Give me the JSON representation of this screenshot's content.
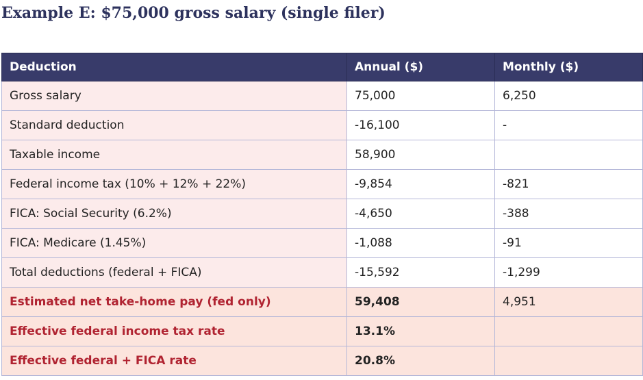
{
  "title": "Example E: $75,000 gross salary (single filer)",
  "table": {
    "headers": [
      "Deduction",
      "Annual ($)",
      "Monthly ($)"
    ],
    "rows": [
      {
        "label": "Gross salary",
        "annual": "75,000",
        "monthly": "6,250"
      },
      {
        "label": "Standard deduction",
        "annual": "-16,100",
        "monthly": "-"
      },
      {
        "label": "Taxable income",
        "annual": "58,900",
        "monthly": ""
      },
      {
        "label": "Federal income tax (10% + 12% + 22%)",
        "annual": "-9,854",
        "monthly": "-821"
      },
      {
        "label": "FICA: Social Security (6.2%)",
        "annual": "-4,650",
        "monthly": "-388"
      },
      {
        "label": "FICA: Medicare (1.45%)",
        "annual": "-1,088",
        "monthly": "-91"
      },
      {
        "label": "Total deductions (federal + FICA)",
        "annual": "-15,592",
        "monthly": "-1,299"
      },
      {
        "label": "Estimated net take-home pay (fed only)",
        "annual": "59,408",
        "monthly": "4,951"
      },
      {
        "label": "Effective federal income tax rate",
        "annual": "13.1%",
        "monthly": ""
      },
      {
        "label": "Effective federal + FICA rate",
        "annual": "20.8%",
        "monthly": ""
      }
    ]
  },
  "colors": {
    "title": "#2d325d",
    "header_bg": "#383b6a",
    "label_bg": "#fcebeb",
    "highlight_bg": "#fce4dd",
    "highlight_text": "#b02331",
    "grid": "#b3b6d8"
  }
}
